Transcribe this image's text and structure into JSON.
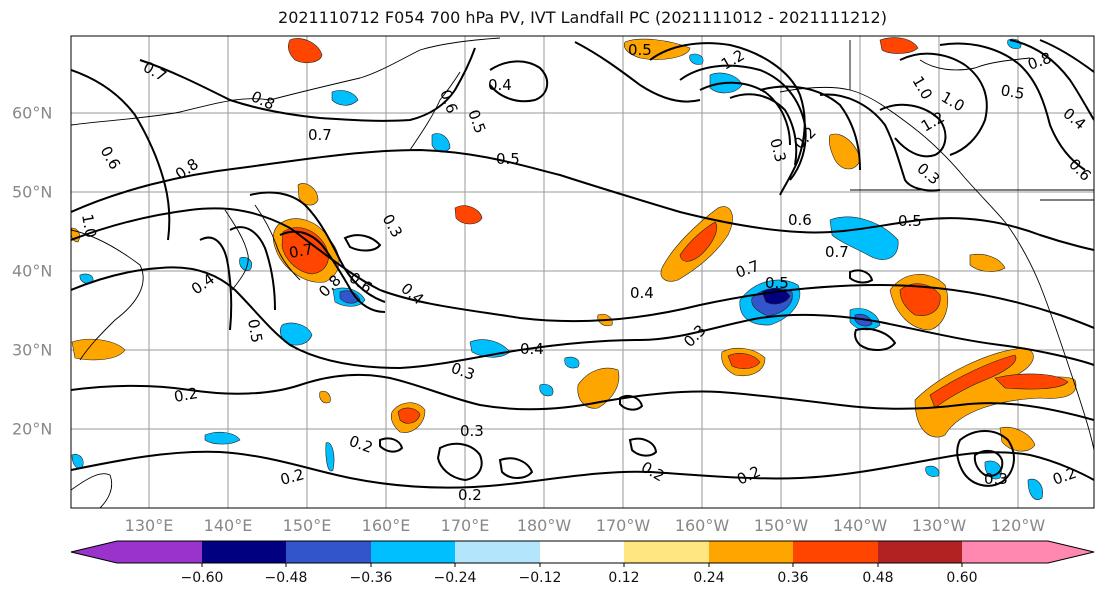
{
  "title": "2021110712 F054 700 hPa PV, IVT Landfall PC (2021111012 - 2021111212)",
  "lat_labels": [
    "60°N",
    "50°N",
    "40°N",
    "30°N",
    "20°N"
  ],
  "lon_labels": [
    "130°E",
    "140°E",
    "150°E",
    "160°E",
    "170°E",
    "180°W",
    "170°W",
    "160°W",
    "150°W",
    "140°W",
    "130°W",
    "120°W"
  ],
  "colorbar": {
    "colors": [
      "#9933cc",
      "#000080",
      "#3355cc",
      "#00bfff",
      "#b3e5fc",
      "#ffffff",
      "#ffe680",
      "#ffa500",
      "#ff4500",
      "#b22222",
      "#ff88b0"
    ],
    "ticks": [
      "−0.60",
      "−0.48",
      "−0.36",
      "−0.24",
      "−0.12",
      "0.12",
      "0.24",
      "0.36",
      "0.48",
      "0.60"
    ]
  },
  "contour_labels": [
    "0.7",
    "0.8",
    "0.7",
    "0.6",
    "0.8",
    "1.0",
    "0.4",
    "0.5",
    "0.7",
    "0.6",
    "0.8",
    "0.3",
    "0.4",
    "0.6",
    "0.5",
    "0.4",
    "0.5",
    "0.5",
    "0.2",
    "0.3",
    "0.2",
    "0.3",
    "0.2",
    "0.4",
    "0.3",
    "0.4",
    "0.2",
    "0.2",
    "0.6",
    "0.5",
    "0.7",
    "0.5",
    "0.7",
    "0.2",
    "1.0",
    "0.2",
    "0.3",
    "1.2",
    "1.2",
    "0.3",
    "0.8",
    "0.5",
    "0.4",
    "0.6",
    "1.0",
    "0.3",
    "0.2"
  ]
}
